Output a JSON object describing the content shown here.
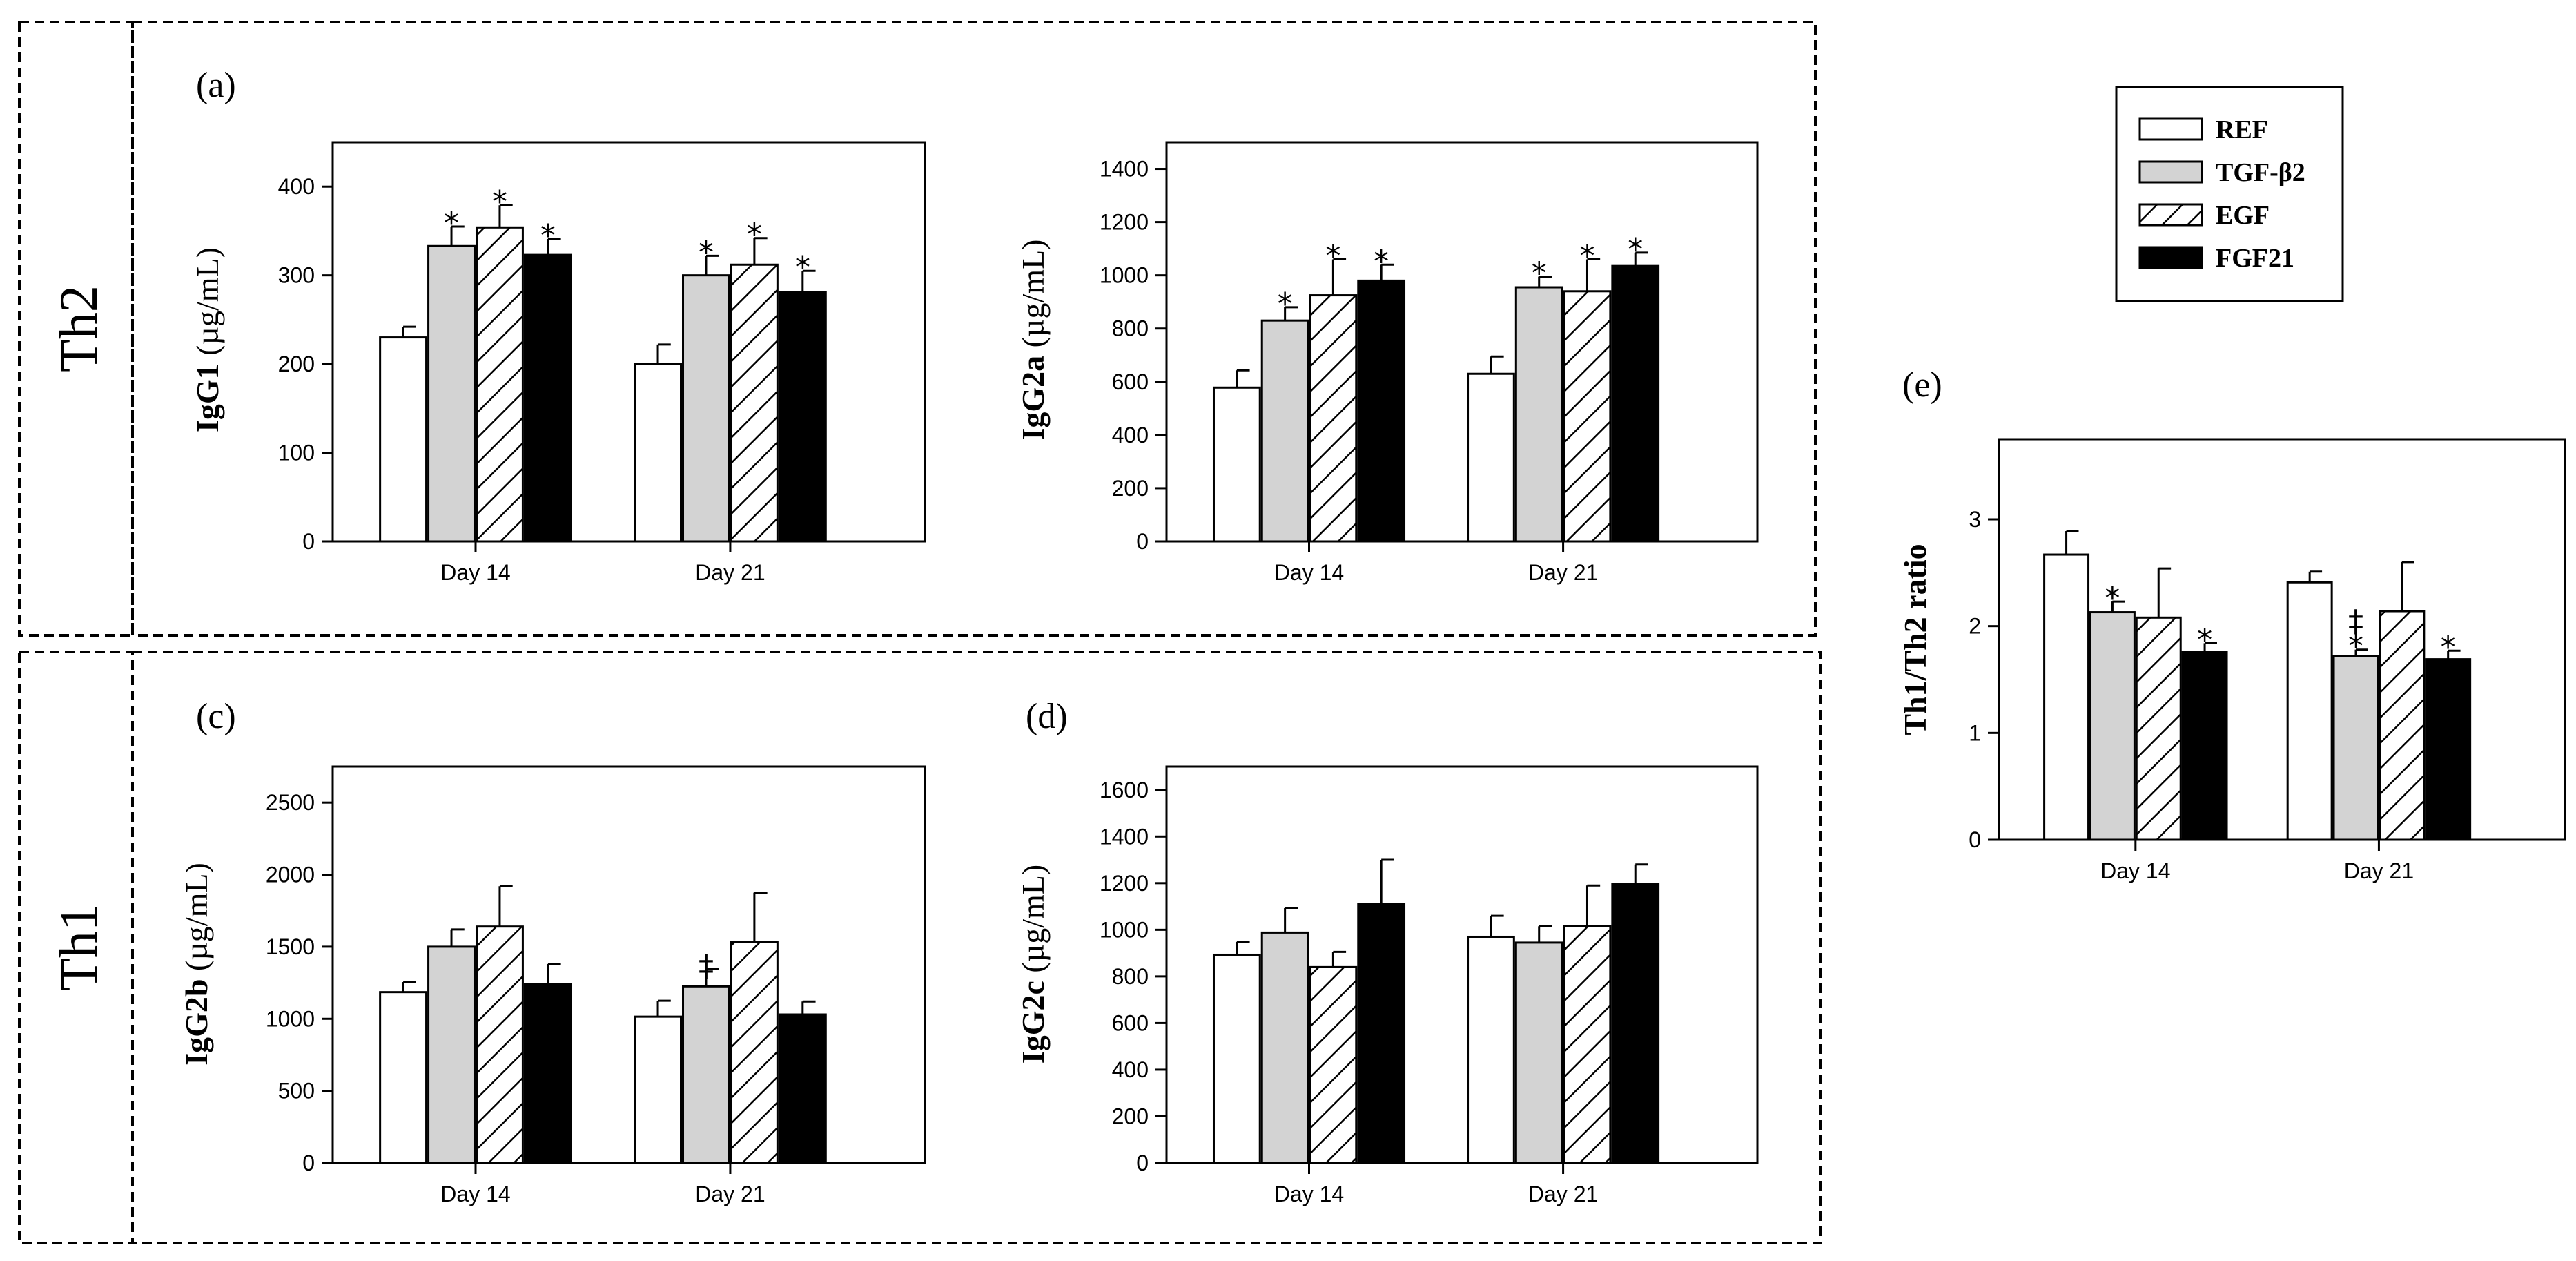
{
  "groups": {
    "th2": "Th2",
    "th1": "Th1"
  },
  "legend": [
    {
      "label": "REF",
      "fill": "white"
    },
    {
      "label": "TGF-β2",
      "fill": "gray"
    },
    {
      "label": "EGF",
      "fill": "hatch"
    },
    {
      "label": "FGF21",
      "fill": "black"
    }
  ],
  "colors": {
    "gray": "#d3d3d3",
    "black": "#000000",
    "white": "#ffffff"
  },
  "chart_data": [
    {
      "type": "bar",
      "panel": "(a)",
      "ylabel_bold": "IgG1",
      "ylabel_unit": " (µg/mL)",
      "categories": [
        "Day 14",
        "Day 21"
      ],
      "ylim": [
        0,
        450
      ],
      "yticks": [
        0,
        100,
        200,
        300,
        400
      ],
      "series": [
        {
          "name": "REF",
          "values": [
            230,
            200
          ],
          "errors": [
            12,
            22
          ],
          "marks": [
            "",
            ""
          ]
        },
        {
          "name": "TGF-β2",
          "values": [
            333,
            300
          ],
          "errors": [
            22,
            22
          ],
          "marks": [
            "*",
            "*"
          ]
        },
        {
          "name": "EGF",
          "values": [
            354,
            312
          ],
          "errors": [
            25,
            30
          ],
          "marks": [
            "*",
            "*"
          ]
        },
        {
          "name": "FGF21",
          "values": [
            323,
            281
          ],
          "errors": [
            18,
            24
          ],
          "marks": [
            "*",
            "*"
          ]
        }
      ]
    },
    {
      "type": "bar",
      "panel": "",
      "ylabel_bold": "IgG2a",
      "ylabel_unit": " (µg/mL)",
      "categories": [
        "Day 14",
        "Day 21"
      ],
      "ylim": [
        0,
        1500
      ],
      "yticks": [
        0,
        200,
        400,
        600,
        800,
        1000,
        1200,
        1400
      ],
      "series": [
        {
          "name": "REF",
          "values": [
            578,
            630
          ],
          "errors": [
            65,
            65
          ],
          "marks": [
            "",
            ""
          ]
        },
        {
          "name": "TGF-β2",
          "values": [
            830,
            955
          ],
          "errors": [
            50,
            40
          ],
          "marks": [
            "*",
            "*"
          ]
        },
        {
          "name": "EGF",
          "values": [
            925,
            940
          ],
          "errors": [
            135,
            120
          ],
          "marks": [
            "*",
            "*"
          ]
        },
        {
          "name": "FGF21",
          "values": [
            980,
            1035
          ],
          "errors": [
            60,
            50
          ],
          "marks": [
            "*",
            "*"
          ]
        }
      ]
    },
    {
      "type": "bar",
      "panel": "(c)",
      "ylabel_bold": "IgG2b",
      "ylabel_unit": " (µg/mL)",
      "categories": [
        "Day 14",
        "Day 21"
      ],
      "ylim": [
        0,
        2750
      ],
      "yticks": [
        0,
        500,
        1000,
        1500,
        2000,
        2500
      ],
      "series": [
        {
          "name": "REF",
          "values": [
            1185,
            1015
          ],
          "errors": [
            70,
            110
          ],
          "marks": [
            "",
            ""
          ]
        },
        {
          "name": "TGF-β2",
          "values": [
            1500,
            1225
          ],
          "errors": [
            120,
            120
          ],
          "marks": [
            "",
            "‡"
          ]
        },
        {
          "name": "EGF",
          "values": [
            1640,
            1535
          ],
          "errors": [
            280,
            340
          ],
          "marks": [
            "",
            ""
          ]
        },
        {
          "name": "FGF21",
          "values": [
            1240,
            1030
          ],
          "errors": [
            140,
            90
          ],
          "marks": [
            "",
            ""
          ]
        }
      ]
    },
    {
      "type": "bar",
      "panel": "(d)",
      "ylabel_bold": "IgG2c",
      "ylabel_unit": " (µg/mL)",
      "categories": [
        "Day 14",
        "Day 21"
      ],
      "ylim": [
        0,
        1700
      ],
      "yticks": [
        0,
        200,
        400,
        600,
        800,
        1000,
        1200,
        1400,
        1600
      ],
      "series": [
        {
          "name": "REF",
          "values": [
            893,
            970
          ],
          "errors": [
            55,
            90
          ],
          "marks": [
            "",
            ""
          ]
        },
        {
          "name": "TGF-β2",
          "values": [
            988,
            945
          ],
          "errors": [
            105,
            70
          ],
          "marks": [
            "",
            ""
          ]
        },
        {
          "name": "EGF",
          "values": [
            840,
            1015
          ],
          "errors": [
            65,
            175
          ],
          "marks": [
            "",
            ""
          ]
        },
        {
          "name": "FGF21",
          "values": [
            1110,
            1195
          ],
          "errors": [
            190,
            85
          ],
          "marks": [
            "",
            ""
          ]
        }
      ]
    },
    {
      "type": "bar",
      "panel": "(e)",
      "ylabel_bold": "Th1/Th2 ratio",
      "ylabel_unit": "",
      "categories": [
        "Day 14",
        "Day 21"
      ],
      "ylim": [
        0,
        3.75
      ],
      "yticks": [
        0,
        1,
        2,
        3
      ],
      "series": [
        {
          "name": "REF",
          "values": [
            2.67,
            2.41
          ],
          "errors": [
            0.22,
            0.1
          ],
          "marks": [
            "",
            ""
          ]
        },
        {
          "name": "TGF-β2",
          "values": [
            2.13,
            1.72
          ],
          "errors": [
            0.1,
            0.06
          ],
          "marks": [
            "*",
            "‡*"
          ]
        },
        {
          "name": "EGF",
          "values": [
            2.08,
            2.14
          ],
          "errors": [
            0.46,
            0.46
          ],
          "marks": [
            "",
            ""
          ]
        },
        {
          "name": "FGF21",
          "values": [
            1.76,
            1.69
          ],
          "errors": [
            0.08,
            0.08
          ],
          "marks": [
            "*",
            "*"
          ]
        }
      ]
    }
  ]
}
